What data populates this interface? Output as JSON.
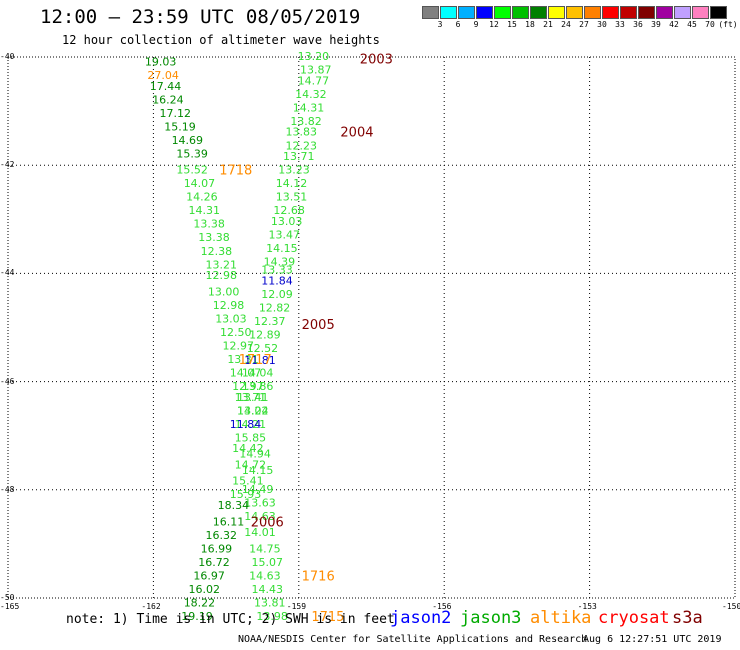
{
  "header": {
    "title": "12:00 – 23:59 UTC 08/05/2019",
    "subtitle": "12 hour collection of altimeter wave heights"
  },
  "colorbar": {
    "colors": [
      "#808080",
      "#00ffff",
      "#00b0ff",
      "#0000ff",
      "#00ff00",
      "#00c000",
      "#008000",
      "#ffff00",
      "#ffc000",
      "#ff8000",
      "#ff0000",
      "#c00000",
      "#800000",
      "#a000a0",
      "#c0a0ff",
      "#ff80c0",
      "#000000"
    ],
    "labels": [
      "3",
      "6",
      "9",
      "12",
      "15",
      "18",
      "21",
      "24",
      "27",
      "30",
      "33",
      "36",
      "39",
      "42",
      "45",
      "70",
      "(ft)"
    ]
  },
  "axes": {
    "lat_labels": [
      "-40",
      "-42",
      "-44",
      "-46",
      "-48",
      "-50"
    ],
    "lon_labels": [
      "-165",
      "-162",
      "-159",
      "-156",
      "-153",
      "-150"
    ]
  },
  "tracks": [
    {
      "color": "#008800",
      "points": [
        [
          "19.03",
          -40.1,
          -161.85
        ],
        [
          "17.44",
          -40.55,
          -161.75
        ],
        [
          "16.24",
          -40.8,
          -161.7
        ],
        [
          "17.12",
          -41.05,
          -161.55
        ],
        [
          "15.19",
          -41.3,
          -161.45
        ],
        [
          "14.69",
          -41.55,
          -161.3
        ],
        [
          "15.39",
          -41.8,
          -161.2
        ]
      ]
    },
    {
      "color": "#ff8c00",
      "points": [
        [
          "27.04",
          -40.35,
          -161.8
        ]
      ]
    },
    {
      "color": "#33dd33",
      "points": [
        [
          "15.52",
          -42.1,
          -161.2
        ],
        [
          "14.07",
          -42.35,
          -161.05
        ],
        [
          "14.26",
          -42.6,
          -161.0
        ],
        [
          "14.31",
          -42.85,
          -160.95
        ],
        [
          "13.38",
          -43.1,
          -160.85
        ],
        [
          "13.38",
          -43.35,
          -160.75
        ],
        [
          "12.38",
          -43.6,
          -160.7
        ],
        [
          "13.21",
          -43.85,
          -160.6
        ],
        [
          "12.98",
          -44.05,
          -160.6
        ],
        [
          "13.00",
          -44.35,
          -160.55
        ],
        [
          "12.98",
          -44.6,
          -160.45
        ],
        [
          "13.03",
          -44.85,
          -160.4
        ],
        [
          "12.50",
          -45.1,
          -160.3
        ],
        [
          "12.97",
          -45.35,
          -160.25
        ],
        [
          "13.31",
          -45.6,
          -160.15
        ],
        [
          "14.07",
          -45.85,
          -160.1
        ],
        [
          "12.97",
          -46.1,
          -160.05
        ],
        [
          "13.71",
          -46.3,
          -160.0
        ],
        [
          "13.04",
          -46.55,
          -159.95
        ]
      ]
    },
    {
      "color": "#33dd33",
      "points": [
        [
          "13.20",
          -40.0,
          -158.7
        ],
        [
          "13.87",
          -40.25,
          -158.65
        ],
        [
          "14.77",
          -40.45,
          -158.7
        ],
        [
          "14.32",
          -40.7,
          -158.75
        ],
        [
          "14.31",
          -40.95,
          -158.8
        ],
        [
          "13.82",
          -41.2,
          -158.85
        ],
        [
          "13.83",
          -41.4,
          -158.95
        ],
        [
          "12.23",
          -41.65,
          -158.95
        ],
        [
          "13.71",
          -41.85,
          -159.0
        ],
        [
          "13.23",
          -42.1,
          -159.1
        ],
        [
          "14.12",
          -42.35,
          -159.15
        ],
        [
          "13.51",
          -42.6,
          -159.15
        ],
        [
          "12.68",
          -42.85,
          -159.2
        ],
        [
          "13.03",
          -43.05,
          -159.25
        ],
        [
          "13.47",
          -43.3,
          -159.3
        ],
        [
          "14.15",
          -43.55,
          -159.35
        ],
        [
          "14.39",
          -43.8,
          -159.4
        ],
        [
          "13.33",
          -43.95,
          -159.45
        ],
        [
          "12.09",
          -44.4,
          -159.45
        ],
        [
          "12.82",
          -44.65,
          -159.5
        ],
        [
          "12.37",
          -44.9,
          -159.6
        ],
        [
          "12.89",
          -45.15,
          -159.7
        ],
        [
          "12.52",
          -45.4,
          -159.75
        ],
        [
          "14.04",
          -45.85,
          -159.85
        ],
        [
          "13.86",
          -46.1,
          -159.85
        ],
        [
          "13.41",
          -46.3,
          -159.95
        ],
        [
          "14.22",
          -46.55,
          -159.95
        ],
        [
          "14.21",
          -46.8,
          -160.0
        ]
      ]
    },
    {
      "color": "#0000cc",
      "points": [
        [
          "11.84",
          -44.15,
          -159.45
        ],
        [
          "11.81",
          -45.62,
          -159.8
        ],
        [
          "11.84",
          -46.8,
          -160.1
        ]
      ]
    },
    {
      "color": "#33dd33",
      "points": [
        [
          "15.85",
          -47.05,
          -160.0
        ],
        [
          "14.42",
          -47.25,
          -160.05
        ],
        [
          "14.94",
          -47.35,
          -159.9
        ],
        [
          "14.72",
          -47.55,
          -160.0
        ],
        [
          "14.15",
          -47.65,
          -159.85
        ],
        [
          "15.41",
          -47.85,
          -160.05
        ],
        [
          "14.49",
          -48.0,
          -159.85
        ],
        [
          "15.93",
          -48.1,
          -160.1
        ],
        [
          "13.63",
          -48.25,
          -159.8
        ],
        [
          "14.63",
          -48.5,
          -159.8
        ],
        [
          "14.01",
          -48.8,
          -159.8
        ],
        [
          "14.75",
          -49.1,
          -159.7
        ],
        [
          "15.07",
          -49.35,
          -159.65
        ],
        [
          "14.63",
          -49.6,
          -159.7
        ],
        [
          "14.43",
          -49.85,
          -159.65
        ],
        [
          "13.81",
          -50.1,
          -159.6
        ],
        [
          "13.98",
          -50.35,
          -159.55
        ]
      ]
    },
    {
      "color": "#008800",
      "points": [
        [
          "18.34",
          -48.3,
          -160.35
        ],
        [
          "16.11",
          -48.6,
          -160.45
        ],
        [
          "16.32",
          -48.85,
          -160.6
        ],
        [
          "16.99",
          -49.1,
          -160.7
        ],
        [
          "16.72",
          -49.35,
          -160.75
        ],
        [
          "16.97",
          -49.6,
          -160.85
        ],
        [
          "16.02",
          -49.85,
          -160.95
        ],
        [
          "18.22",
          -50.1,
          -161.05
        ],
        [
          "19.19",
          -50.35,
          -161.1
        ]
      ]
    }
  ],
  "pass_labels": [
    {
      "text": "2003",
      "color": "#800000",
      "lat": -40.05,
      "lon": -157.4
    },
    {
      "text": "2004",
      "color": "#800000",
      "lat": -41.4,
      "lon": -157.8
    },
    {
      "text": "1718",
      "color": "#ff8c00",
      "lat": -42.1,
      "lon": -160.3
    },
    {
      "text": "2005",
      "color": "#800000",
      "lat": -44.95,
      "lon": -158.6
    },
    {
      "text": "1717",
      "color": "#ff8c00",
      "lat": -45.6,
      "lon": -159.9
    },
    {
      "text": "2006",
      "color": "#800000",
      "lat": -48.6,
      "lon": -159.65
    },
    {
      "text": "1716",
      "color": "#ff8c00",
      "lat": -49.6,
      "lon": -158.6
    },
    {
      "text": "1715",
      "color": "#ff8c00",
      "lat": -50.35,
      "lon": -158.4
    }
  ],
  "footer": {
    "note": "note: 1) Time is in UTC; 2) SWH is in feet",
    "credit": "NOAA/NESDIS Center for Satellite Applications and Research",
    "timestamp": "Aug  6 12:27:51 UTC 2019",
    "legend": [
      {
        "name": "jason2",
        "color": "#0000ff"
      },
      {
        "name": "jason3",
        "color": "#00aa00"
      },
      {
        "name": "altika",
        "color": "#ff8c00"
      },
      {
        "name": "cryosat",
        "color": "#ff0000"
      },
      {
        "name": "s3a",
        "color": "#800000"
      }
    ]
  }
}
